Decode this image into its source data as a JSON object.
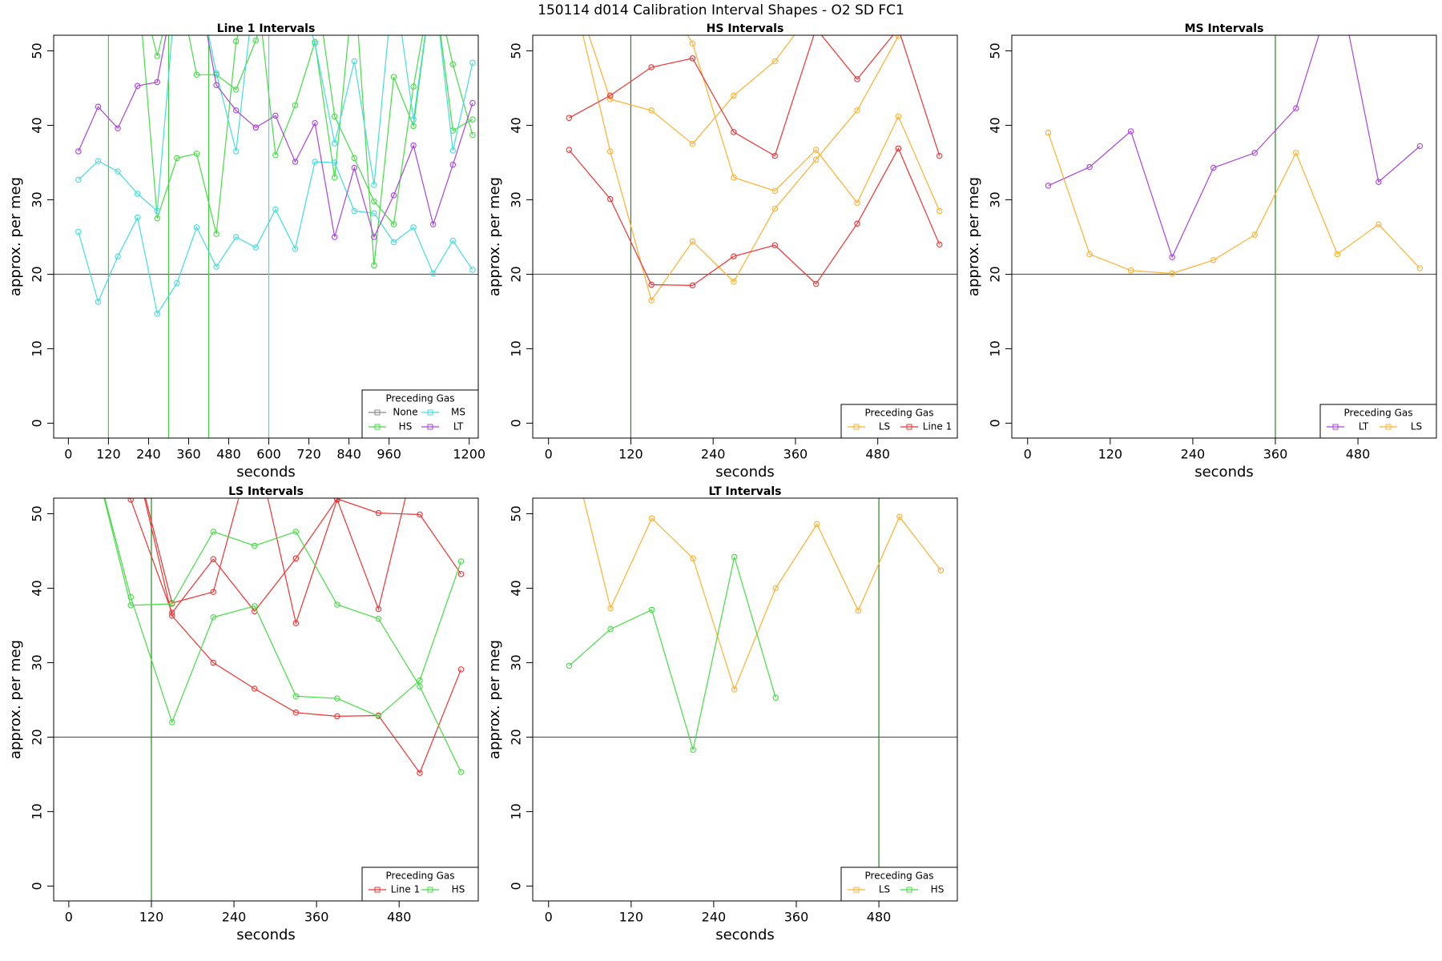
{
  "title": "150114   d014   Calibration Interval Shapes - O2 SD FC1",
  "chart_data": [
    {
      "type": "line",
      "title": "Line 1 Intervals",
      "xlabel": "seconds",
      "ylabel": "approx. per meg",
      "xlim": [
        -44,
        1227
      ],
      "xticks": [
        0,
        120,
        240,
        360,
        480,
        600,
        720,
        840,
        960,
        1200
      ],
      "ylim": [
        -2,
        52.1
      ],
      "yticks": [
        0,
        10,
        20,
        30,
        40,
        50
      ],
      "hline": 20,
      "hline_color": "#555555",
      "vlines": [
        {
          "x": 120,
          "color": "#44cc44"
        },
        {
          "x": 300,
          "color": "#44cc44"
        },
        {
          "x": 420,
          "color": "#44cc44"
        },
        {
          "x": 600,
          "color": "#44dddd"
        }
      ],
      "legend": {
        "title": "Preceding Gas",
        "position": "bottomright",
        "ncol": 2
      },
      "series": [
        {
          "name": "None",
          "color": "#888888",
          "x": [
            561
          ],
          "lines": [
            [
              39.7
            ]
          ]
        },
        {
          "name": "HS",
          "color": "#44dd44",
          "x": [
            30,
            89,
            148,
            207,
            266,
            325,
            384,
            443,
            502,
            561,
            620,
            679,
            738,
            797,
            856,
            915,
            974,
            1033,
            1092,
            1151,
            1210
          ],
          "lines": [
            [
              60,
              60,
              60,
              60,
              27.5,
              35.6,
              36.2,
              25.4,
              51.3,
              60,
              36.0,
              42.7,
              51.2,
              33.0,
              60,
              21.2,
              46.5,
              39.9,
              60,
              48.2,
              38.7
            ],
            [
              60,
              60,
              60,
              60,
              49.3,
              60,
              46.8,
              46.8,
              44.8,
              51.4,
              60,
              60,
              60,
              41.2,
              35.6,
              29.8,
              26.7,
              45.2,
              60,
              39.3,
              40.8
            ]
          ]
        },
        {
          "name": "MS",
          "color": "#44dddd",
          "x": [
            30,
            89,
            148,
            207,
            266,
            325,
            384,
            443,
            502,
            561,
            620,
            679,
            738,
            797,
            856,
            915,
            974,
            1033,
            1092,
            1151,
            1210
          ],
          "lines": [
            [
              25.7,
              16.3,
              22.4,
              27.6,
              14.7,
              18.8,
              26.3,
              21.0,
              25.0,
              23.6,
              28.7,
              23.4,
              35.1,
              35.0,
              28.5,
              28.2,
              24.3,
              26.3,
              20.1,
              24.5,
              20.6
            ],
            [
              32.7,
              35.2,
              33.8,
              30.8,
              28.5,
              60,
              60,
              47.0,
              36.5,
              60,
              60,
              60,
              51.0,
              37.6,
              48.6,
              32.0,
              60,
              40.8,
              60,
              36.6,
              48.4
            ]
          ]
        },
        {
          "name": "LT",
          "color": "#aa44dd",
          "x": [
            30,
            89,
            148,
            207,
            266,
            325,
            384,
            443,
            502,
            561,
            620,
            679,
            738,
            797,
            856,
            915,
            974,
            1033,
            1092,
            1151,
            1210
          ],
          "lines": [
            [
              36.5,
              42.5,
              39.6,
              45.3,
              45.8,
              60,
              60,
              45.4,
              42.0,
              39.7,
              41.3,
              35.1,
              40.3,
              25.0,
              34.3,
              25.0,
              30.6,
              37.3,
              26.7,
              34.7,
              43.0
            ]
          ]
        }
      ]
    },
    {
      "type": "line",
      "title": "HS Intervals",
      "xlabel": "seconds",
      "ylabel": "approx. per meg",
      "xlim": [
        -23,
        596
      ],
      "xticks": [
        0,
        120,
        240,
        360,
        480
      ],
      "ylim": [
        -2,
        52.1
      ],
      "yticks": [
        0,
        10,
        20,
        30,
        40,
        50
      ],
      "hline": 20,
      "hline_color": "#555555",
      "vlines": [
        {
          "x": 120,
          "color": "#228b22"
        }
      ],
      "legend": {
        "title": "Preceding Gas",
        "position": "bottomright",
        "ncol": 2
      },
      "series": [
        {
          "name": "LS",
          "color": "#ffb030",
          "x": [
            30,
            90,
            150,
            210,
            270,
            330,
            390,
            450,
            510,
            570
          ],
          "lines": [
            [
              60,
              43.5,
              42.0,
              37.5,
              44.0,
              48.6,
              56,
              60,
              60,
              60
            ],
            [
              60,
              36.5,
              16.5,
              24.4,
              19.0,
              28.8,
              35.4,
              42.0,
              52.0,
              60
            ],
            [
              60,
              60,
              60,
              51.0,
              33.0,
              31.2,
              36.7,
              29.6,
              41.2,
              28.5
            ]
          ]
        },
        {
          "name": "Line 1",
          "color": "#ee3333",
          "x": [
            30,
            90,
            150,
            210,
            270,
            330,
            390,
            450,
            510,
            570
          ],
          "lines": [
            [
              41.0,
              44.0,
              47.8,
              49.0,
              39.1,
              35.9,
              53,
              46.2,
              53,
              35.9
            ],
            [
              36.7,
              30.1,
              18.6,
              18.5,
              22.4,
              23.9,
              18.7,
              26.8,
              36.9,
              24.0
            ]
          ]
        }
      ]
    },
    {
      "type": "line",
      "title": "MS Intervals",
      "xlabel": "seconds",
      "ylabel": "approx. per meg",
      "xlim": [
        -23,
        594
      ],
      "xticks": [
        0,
        120,
        240,
        360,
        480
      ],
      "ylim": [
        -2,
        52.1
      ],
      "yticks": [
        0,
        10,
        20,
        30,
        40,
        50
      ],
      "hline": 20,
      "hline_color": "#555555",
      "vlines": [
        {
          "x": 360,
          "color": "#228b22"
        }
      ],
      "legend": {
        "title": "Preceding Gas",
        "position": "bottomright",
        "ncol": 2
      },
      "series": [
        {
          "name": "LT",
          "color": "#aa44dd",
          "x": [
            30,
            90,
            150,
            210,
            270,
            330,
            390,
            450,
            510,
            570
          ],
          "lines": [
            [
              31.9,
              34.4,
              39.2,
              22.3,
              34.3,
              36.3,
              42.3,
              60,
              32.4,
              37.2
            ]
          ]
        },
        {
          "name": "LS",
          "color": "#ffb030",
          "x": [
            30,
            90,
            150,
            210,
            270,
            330,
            390,
            450,
            510,
            570
          ],
          "lines": [
            [
              39.0,
              22.7,
              20.5,
              20.1,
              21.9,
              25.3,
              36.3,
              22.7,
              26.7,
              20.8
            ]
          ]
        }
      ]
    },
    {
      "type": "line",
      "title": "LS Intervals",
      "xlabel": "seconds",
      "ylabel": "approx. per meg",
      "xlim": [
        -22,
        595
      ],
      "xticks": [
        0,
        120,
        240,
        360,
        480
      ],
      "ylim": [
        -2,
        52.1
      ],
      "yticks": [
        0,
        10,
        20,
        30,
        40,
        50
      ],
      "hline": 20,
      "hline_color": "#555555",
      "vlines": [
        {
          "x": 120,
          "color": "#228b22"
        }
      ],
      "legend": {
        "title": "Preceding Gas",
        "position": "bottomright",
        "ncol": 2
      },
      "series": [
        {
          "name": "Line 1",
          "color": "#ee3333",
          "x": [
            30,
            90,
            150,
            210,
            270,
            330,
            390,
            450,
            510,
            570
          ],
          "lines": [
            [
              60,
              51.9,
              36.7,
              43.9,
              36.9,
              44.0,
              52.0,
              50.1,
              49.9,
              41.9
            ],
            [
              60,
              60,
              38.0,
              39.5,
              60,
              35.3,
              51.9,
              37.2,
              60,
              60
            ],
            [
              60,
              60,
              36.3,
              30.0,
              26.5,
              23.3,
              22.8,
              22.9,
              15.2,
              29.1
            ]
          ]
        },
        {
          "name": "HS",
          "color": "#44dd44",
          "x": [
            30,
            90,
            150,
            210,
            270,
            330,
            390,
            450,
            510,
            570
          ],
          "lines": [
            [
              60,
              38.8,
              22.0,
              36.1,
              37.6,
              25.5,
              25.2,
              22.8,
              27.6,
              43.6
            ],
            [
              60,
              37.7,
              37.9,
              47.6,
              45.7,
              47.6,
              37.8,
              35.9,
              26.8,
              15.3
            ]
          ]
        }
      ]
    },
    {
      "type": "line",
      "title": "LT Intervals",
      "xlabel": "seconds",
      "ylabel": "approx. per meg",
      "xlim": [
        -23,
        594
      ],
      "xticks": [
        0,
        120,
        240,
        360,
        480
      ],
      "ylim": [
        -2,
        52.1
      ],
      "yticks": [
        0,
        10,
        20,
        30,
        40,
        50
      ],
      "hline": 20,
      "hline_color": "#555555",
      "vlines": [
        {
          "x": 480,
          "color": "#228b22"
        }
      ],
      "legend": {
        "title": "Preceding Gas",
        "position": "bottomright",
        "ncol": 2
      },
      "series": [
        {
          "name": "LS",
          "color": "#ffb030",
          "x": [
            30,
            90,
            150,
            210,
            270,
            330,
            390,
            450,
            510,
            570
          ],
          "lines": [
            [
              60,
              37.3,
              49.4,
              44.0,
              26.4,
              40.0,
              48.6,
              37.0,
              49.6,
              42.4
            ]
          ]
        },
        {
          "name": "HS",
          "color": "#44dd44",
          "x": [
            30,
            90,
            150,
            210,
            270,
            330
          ],
          "lines": [
            [
              29.6,
              34.5,
              37.1,
              18.3,
              44.2,
              25.3
            ]
          ]
        }
      ]
    }
  ]
}
